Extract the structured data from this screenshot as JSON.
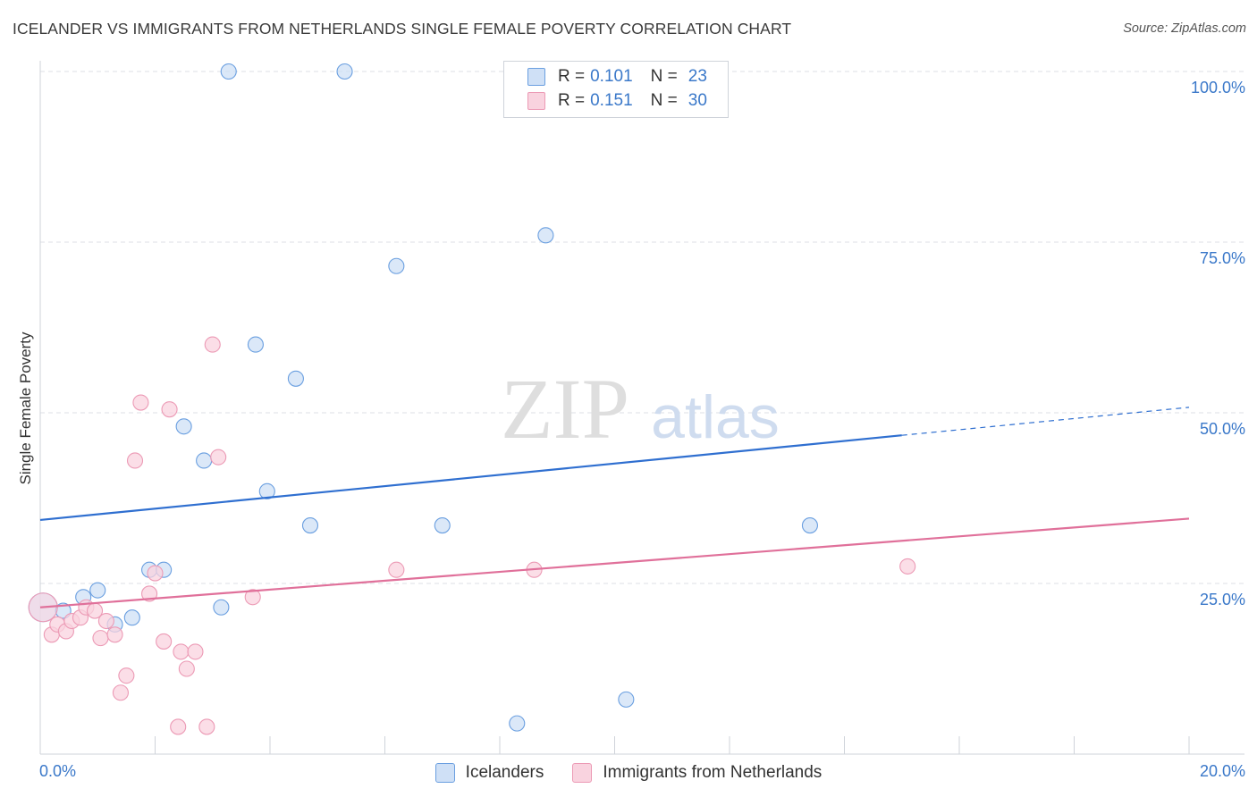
{
  "title": "ICELANDER VS IMMIGRANTS FROM NETHERLANDS SINGLE FEMALE POVERTY CORRELATION CHART",
  "source": "Source: ZipAtlas.com",
  "watermark": {
    "zip": "ZIP",
    "atlas": "atlas"
  },
  "legend_top": {
    "r_label": "R =",
    "n_label": "N =",
    "series": [
      {
        "r": "0.101",
        "n": "23"
      },
      {
        "r": "0.151",
        "n": "30"
      }
    ]
  },
  "chart_data": {
    "type": "scatter",
    "title": "ICELANDER VS IMMIGRANTS FROM NETHERLANDS SINGLE FEMALE POVERTY CORRELATION CHART",
    "xlabel": "",
    "ylabel": "Single Female Poverty",
    "xlim": [
      0,
      20
    ],
    "ylim": [
      0,
      100
    ],
    "x_tick_labels": [
      "0.0%",
      "20.0%"
    ],
    "y_tick_labels": [
      "100.0%",
      "75.0%",
      "50.0%",
      "25.0%"
    ],
    "y_ticks": [
      100,
      75,
      50,
      25
    ],
    "grid": true,
    "legend_position": "bottom",
    "series": [
      {
        "name": "Icelanders",
        "color": "#6a9fe0",
        "fill": "#cfe0f6",
        "r": 0.101,
        "n": 23,
        "trend": {
          "x0": 0,
          "y0": 34.3,
          "x1": 15.0,
          "y1": 46.7,
          "dash_to_x": 20,
          "dash_to_y": 50.8
        },
        "trend_color": "#2f6fd0",
        "points": [
          {
            "x": 0.05,
            "y": 21.5,
            "big": true
          },
          {
            "x": 0.4,
            "y": 21.0
          },
          {
            "x": 0.75,
            "y": 23.0
          },
          {
            "x": 1.0,
            "y": 24.0
          },
          {
            "x": 1.3,
            "y": 19.0
          },
          {
            "x": 1.6,
            "y": 20.0
          },
          {
            "x": 1.9,
            "y": 27.0
          },
          {
            "x": 2.15,
            "y": 27.0
          },
          {
            "x": 2.5,
            "y": 48.0
          },
          {
            "x": 2.85,
            "y": 43.0
          },
          {
            "x": 3.15,
            "y": 21.5
          },
          {
            "x": 3.28,
            "y": 100.0
          },
          {
            "x": 3.75,
            "y": 60.0
          },
          {
            "x": 3.95,
            "y": 38.5
          },
          {
            "x": 4.45,
            "y": 55.0
          },
          {
            "x": 4.7,
            "y": 33.5
          },
          {
            "x": 5.3,
            "y": 100.0
          },
          {
            "x": 6.2,
            "y": 71.5
          },
          {
            "x": 7.0,
            "y": 33.5
          },
          {
            "x": 8.3,
            "y": 4.5
          },
          {
            "x": 8.8,
            "y": 76.0
          },
          {
            "x": 10.2,
            "y": 8.0
          },
          {
            "x": 13.4,
            "y": 33.5
          }
        ]
      },
      {
        "name": "Immigrants from Netherlands",
        "color": "#ec9ab5",
        "fill": "#f9d3df",
        "r": 0.151,
        "n": 30,
        "trend": {
          "x0": 0,
          "y0": 21.5,
          "x1": 20,
          "y1": 34.5
        },
        "trend_color": "#e0709a",
        "points": [
          {
            "x": 0.05,
            "y": 21.5,
            "big": true
          },
          {
            "x": 0.2,
            "y": 17.5
          },
          {
            "x": 0.3,
            "y": 19.0
          },
          {
            "x": 0.45,
            "y": 18.0
          },
          {
            "x": 0.55,
            "y": 19.5
          },
          {
            "x": 0.7,
            "y": 20.0
          },
          {
            "x": 0.8,
            "y": 21.5
          },
          {
            "x": 0.95,
            "y": 21.0
          },
          {
            "x": 1.05,
            "y": 17.0
          },
          {
            "x": 1.15,
            "y": 19.5
          },
          {
            "x": 1.3,
            "y": 17.5
          },
          {
            "x": 1.4,
            "y": 9.0
          },
          {
            "x": 1.5,
            "y": 11.5
          },
          {
            "x": 1.65,
            "y": 43.0
          },
          {
            "x": 1.75,
            "y": 51.5
          },
          {
            "x": 1.9,
            "y": 23.5
          },
          {
            "x": 2.0,
            "y": 26.5
          },
          {
            "x": 2.15,
            "y": 16.5
          },
          {
            "x": 2.25,
            "y": 50.5
          },
          {
            "x": 2.4,
            "y": 4.0
          },
          {
            "x": 2.45,
            "y": 15.0
          },
          {
            "x": 2.55,
            "y": 12.5
          },
          {
            "x": 2.7,
            "y": 15.0
          },
          {
            "x": 2.9,
            "y": 4.0
          },
          {
            "x": 3.0,
            "y": 60.0
          },
          {
            "x": 3.1,
            "y": 43.5
          },
          {
            "x": 3.7,
            "y": 23.0
          },
          {
            "x": 6.2,
            "y": 27.0
          },
          {
            "x": 8.6,
            "y": 27.0
          },
          {
            "x": 15.1,
            "y": 27.5
          }
        ]
      }
    ]
  }
}
